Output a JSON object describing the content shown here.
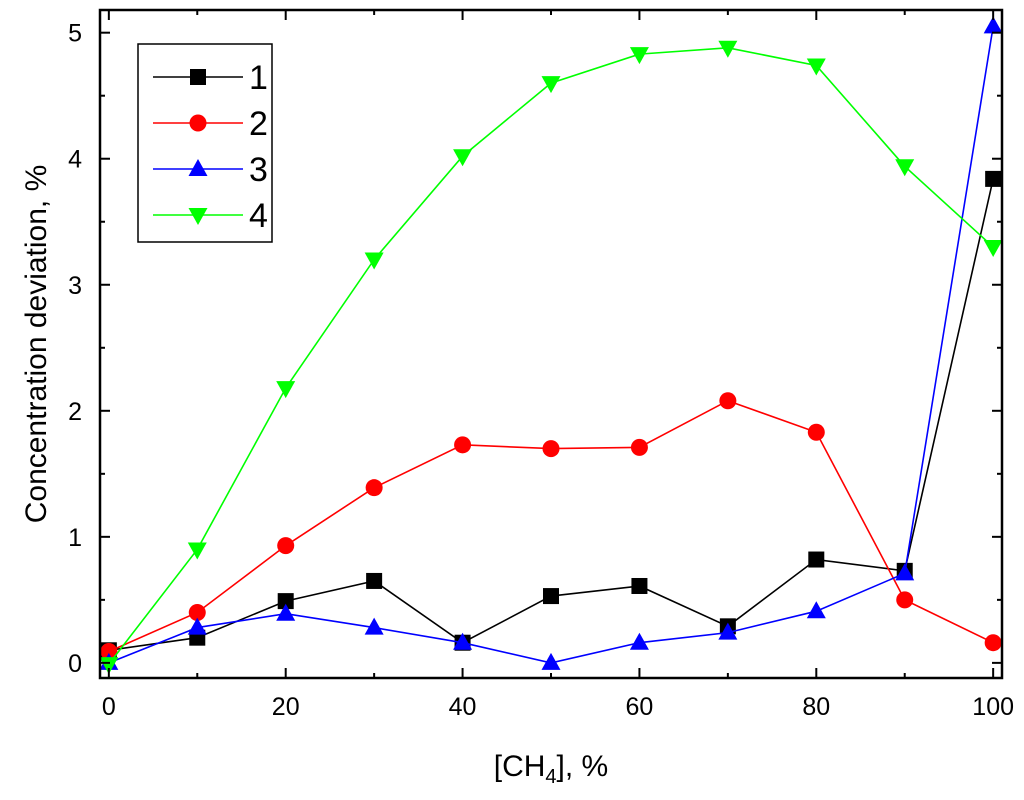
{
  "chart_data": {
    "type": "line",
    "title": "",
    "xlabel": {
      "prefix": "[CH",
      "sub": "4",
      "suffix": "], %"
    },
    "ylabel": "Concentration deviation, %",
    "xlim": [
      -1,
      101
    ],
    "ylim": [
      -0.12,
      5.18
    ],
    "xticks": [
      0,
      20,
      40,
      60,
      80,
      100
    ],
    "yticks": [
      0,
      1,
      2,
      3,
      4,
      5
    ],
    "x": [
      0,
      10,
      20,
      30,
      40,
      50,
      60,
      70,
      80,
      90,
      100
    ],
    "legend_position": "top-left",
    "grid": false,
    "series": [
      {
        "name": "1",
        "color": "#000000",
        "marker": "square",
        "values": [
          0.1,
          0.2,
          0.49,
          0.65,
          0.16,
          0.53,
          0.61,
          0.29,
          0.82,
          0.73,
          3.84
        ]
      },
      {
        "name": "2",
        "color": "#ff0000",
        "marker": "circle",
        "values": [
          0.09,
          0.4,
          0.93,
          1.39,
          1.73,
          1.7,
          1.71,
          2.08,
          1.83,
          0.5,
          0.16
        ]
      },
      {
        "name": "3",
        "color": "#0000ff",
        "marker": "triangle-up",
        "values": [
          0.0,
          0.28,
          0.39,
          0.28,
          0.16,
          0.0,
          0.16,
          0.24,
          0.41,
          0.71,
          5.05
        ]
      },
      {
        "name": "4",
        "color": "#00ff00",
        "marker": "triangle-down",
        "values": [
          -0.01,
          0.9,
          2.18,
          3.2,
          4.02,
          4.6,
          4.83,
          4.88,
          4.74,
          3.94,
          3.3
        ]
      }
    ]
  }
}
